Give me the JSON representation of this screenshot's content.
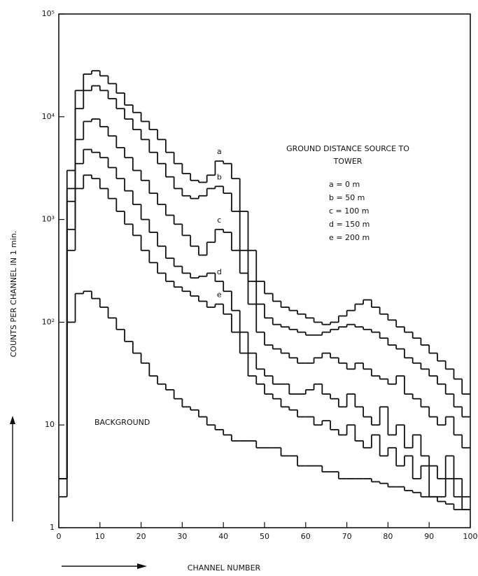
{
  "chart_data": {
    "type": "histogram",
    "y_label": "COUNTS PER CHANNEL IN 1 min.",
    "x_label": "CHANNEL NUMBER",
    "annotation": [
      "GROUND DISTANCE SOURCE TO",
      "TOWER"
    ],
    "log_y": true,
    "xlim": [
      0,
      100
    ],
    "ylim": [
      1,
      100000
    ],
    "xticks": [
      0,
      10,
      20,
      30,
      40,
      50,
      60,
      70,
      80,
      90,
      100
    ],
    "yticks": [
      1,
      10,
      {
        "value": 100,
        "label": "10²"
      },
      {
        "value": 1000,
        "label": "10³"
      },
      {
        "value": 10000,
        "label": "10⁴"
      },
      {
        "value": 100000,
        "label": "10⁵"
      }
    ],
    "bins": [
      0,
      2,
      4,
      6,
      8,
      10,
      12,
      14,
      16,
      18,
      20,
      22,
      24,
      26,
      28,
      30,
      32,
      34,
      36,
      38,
      40,
      42,
      44,
      46,
      48,
      50,
      52,
      54,
      56,
      58,
      60,
      62,
      64,
      66,
      68,
      70,
      72,
      74,
      76,
      78,
      80,
      82,
      84,
      86,
      88,
      90,
      92,
      94,
      96,
      98,
      100
    ],
    "series": [
      {
        "name": "a = 0 m",
        "label": "a",
        "color": "#111111",
        "values": [
          3,
          3000,
          18000,
          26000,
          28000,
          25000,
          21000,
          17000,
          13000,
          11000,
          9000,
          7500,
          6000,
          4500,
          3500,
          2800,
          2400,
          2300,
          2700,
          3700,
          3500,
          2500,
          1200,
          500,
          250,
          190,
          160,
          140,
          130,
          120,
          110,
          100,
          95,
          100,
          115,
          130,
          150,
          165,
          140,
          120,
          105,
          90,
          80,
          70,
          60,
          50,
          42,
          35,
          28,
          20
        ]
      },
      {
        "name": "b = 50 m",
        "label": "b",
        "color": "#111111",
        "values": [
          3,
          2000,
          12000,
          18000,
          20000,
          18000,
          15000,
          12000,
          9500,
          7500,
          6000,
          4500,
          3500,
          2600,
          2000,
          1700,
          1600,
          1700,
          2000,
          2100,
          1800,
          1200,
          500,
          250,
          150,
          110,
          95,
          90,
          85,
          80,
          75,
          75,
          80,
          85,
          90,
          95,
          90,
          85,
          80,
          70,
          60,
          55,
          45,
          40,
          35,
          30,
          25,
          20,
          15,
          12
        ]
      },
      {
        "name": "c = 100 m",
        "label": "c",
        "color": "#111111",
        "values": [
          3,
          1500,
          6000,
          9000,
          9500,
          8000,
          6500,
          5000,
          4000,
          3000,
          2400,
          1800,
          1400,
          1100,
          900,
          700,
          550,
          450,
          600,
          800,
          750,
          500,
          300,
          150,
          80,
          60,
          55,
          50,
          45,
          40,
          40,
          45,
          50,
          45,
          40,
          35,
          40,
          35,
          30,
          28,
          25,
          30,
          20,
          18,
          15,
          12,
          10,
          12,
          8,
          6
        ]
      },
      {
        "name": "d = 150 m",
        "label": "d",
        "color": "#111111",
        "values": [
          3,
          800,
          3500,
          4800,
          4500,
          4000,
          3200,
          2500,
          1900,
          1400,
          1000,
          750,
          550,
          420,
          350,
          300,
          270,
          280,
          300,
          250,
          200,
          130,
          80,
          50,
          35,
          30,
          25,
          25,
          20,
          20,
          22,
          25,
          20,
          18,
          15,
          20,
          15,
          12,
          10,
          15,
          8,
          10,
          6,
          8,
          5,
          4,
          3,
          5,
          3,
          2
        ]
      },
      {
        "name": "e = 200 m",
        "label": "e",
        "color": "#111111",
        "values": [
          3,
          500,
          2000,
          2700,
          2500,
          2000,
          1600,
          1200,
          900,
          700,
          500,
          380,
          300,
          250,
          220,
          200,
          180,
          160,
          140,
          150,
          120,
          80,
          50,
          30,
          25,
          20,
          18,
          15,
          14,
          12,
          12,
          10,
          11,
          9,
          8,
          10,
          7,
          6,
          8,
          5,
          6,
          4,
          5,
          3,
          4,
          2,
          2,
          3,
          2,
          1.5
        ]
      },
      {
        "name": "BACKGROUND",
        "color": "#111111",
        "values": [
          2,
          100,
          190,
          200,
          170,
          140,
          110,
          85,
          65,
          50,
          40,
          30,
          25,
          22,
          18,
          15,
          14,
          12,
          10,
          9,
          8,
          7,
          7,
          7,
          6,
          6,
          6,
          5,
          5,
          4,
          4,
          4,
          3.5,
          3.5,
          3,
          3,
          3,
          3,
          2.8,
          2.7,
          2.5,
          2.5,
          2.3,
          2.2,
          2,
          2,
          1.8,
          1.7,
          1.5,
          1.5
        ]
      }
    ]
  }
}
